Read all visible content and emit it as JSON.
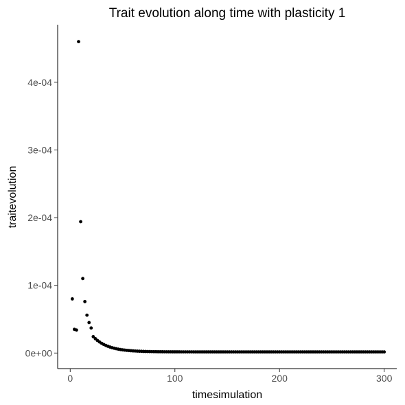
{
  "chart_data": {
    "type": "scatter",
    "title": "Trait evolution along time with plasticity 1",
    "xlabel": "timesimulation",
    "ylabel": "traitevolution",
    "xlim": [
      -12,
      312
    ],
    "ylim": [
      -2.3e-05,
      0.000485
    ],
    "x_ticks": [
      0,
      100,
      200,
      300
    ],
    "x_tick_labels": [
      "0",
      "100",
      "200",
      "300"
    ],
    "y_ticks": [
      0,
      0.0001,
      0.0002,
      0.0003,
      0.0004
    ],
    "y_tick_labels": [
      "0e+00",
      "1e-04",
      "2e-04",
      "3e-04",
      "4e-04"
    ],
    "grid": false,
    "legend": "none",
    "point_color": "#000000",
    "tail": {
      "start_x": 22,
      "end_x": 300,
      "step": 2,
      "floor": 1.7e-06,
      "amplitude": 2.6e-05,
      "decay": 14
    },
    "x": [
      2,
      4,
      6,
      8,
      10,
      12,
      14,
      16,
      18,
      20
    ],
    "y": [
      8e-05,
      3.5e-05,
      3.4e-05,
      0.00046,
      0.000194,
      0.00011,
      7.6e-05,
      5.6e-05,
      4.5e-05,
      3.7e-05
    ]
  }
}
